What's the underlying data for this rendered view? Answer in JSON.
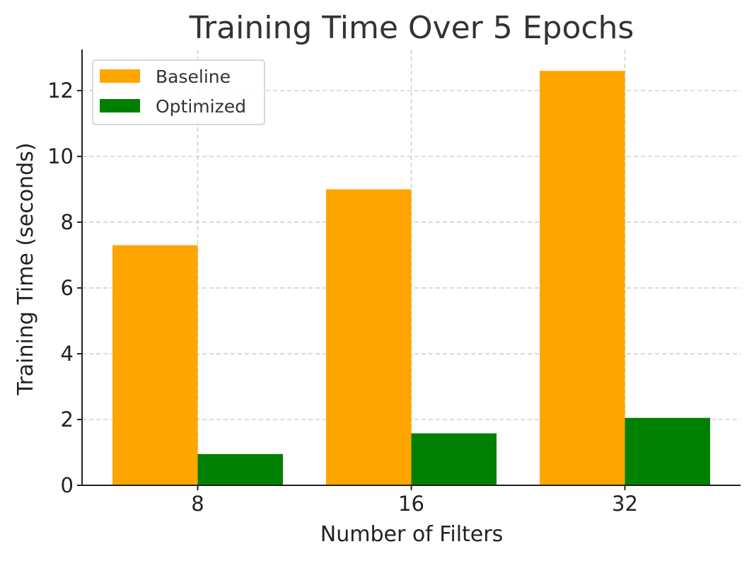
{
  "chart_data": {
    "type": "bar",
    "title": "Training Time Over 5 Epochs",
    "xlabel": "Number of Filters",
    "ylabel": "Training Time (seconds)",
    "categories": [
      "8",
      "16",
      "32"
    ],
    "series": [
      {
        "name": "Baseline",
        "color": "#FFA500",
        "values": [
          7.3,
          9.0,
          12.6
        ]
      },
      {
        "name": "Optimized",
        "color": "#008000",
        "values": [
          0.95,
          1.58,
          2.05
        ]
      }
    ],
    "ylim": [
      0,
      13.25
    ],
    "yticks": [
      0,
      2,
      4,
      6,
      8,
      10,
      12
    ],
    "grid": true,
    "legend": "top-left"
  }
}
